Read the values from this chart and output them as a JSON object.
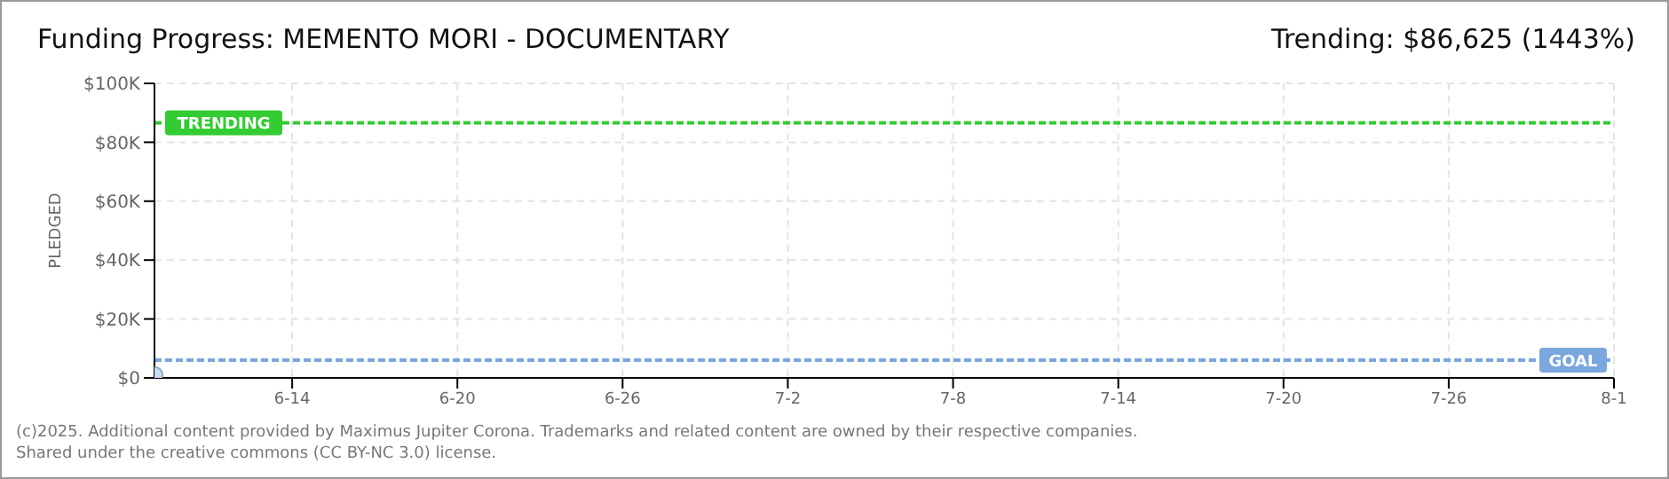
{
  "chart_data": {
    "type": "scatter",
    "title": "Funding Progress: MEMENTO MORI - DOCUMENTARY",
    "subtitle": "Trending: $86,625 (1443%)",
    "ylabel": "PLEDGED",
    "x": [
      "--06-09"
    ],
    "series": [
      {
        "color": "#c6dcf5",
        "values": [
          1000
        ]
      }
    ],
    "xlim": [
      "--06-09",
      "--08-01"
    ],
    "xticks": [
      {
        "value": "--06-14",
        "label": "6-14"
      },
      {
        "value": "--06-20",
        "label": "6-20"
      },
      {
        "value": "--06-26",
        "label": "6-26"
      },
      {
        "value": "--07-02",
        "label": "7-2"
      },
      {
        "value": "--07-08",
        "label": "7-8"
      },
      {
        "value": "--07-14",
        "label": "7-14"
      },
      {
        "value": "--07-20",
        "label": "7-20"
      },
      {
        "value": "--07-26",
        "label": "7-26"
      },
      {
        "value": "--08-01",
        "label": "8-1"
      }
    ],
    "ylim": [
      0,
      100000
    ],
    "yticks": [
      {
        "value": 0,
        "label": "$0"
      },
      {
        "value": 20000,
        "label": "$20K"
      },
      {
        "value": 40000,
        "label": "$40K"
      },
      {
        "value": 60000,
        "label": "$60K"
      },
      {
        "value": 80000,
        "label": "$80K"
      },
      {
        "value": 100000,
        "label": "$100K"
      }
    ],
    "ref_lines": [
      {
        "axis": "y",
        "value": 86625,
        "label": "TRENDING",
        "color": "#33cc33",
        "line_style": "dashed"
      },
      {
        "axis": "y",
        "value": 6000,
        "label": "GOAL",
        "color": "#7aa7dd",
        "line_style": "dashed"
      }
    ],
    "grid": true,
    "legend": false,
    "marker": "circle",
    "annotations": [
      "(c)2025. Additional content provided by Maximus Jupiter Corona. Trademarks and related content are owned by their respective companies.",
      "Shared under the creative commons (CC BY-NC 3.0) license."
    ]
  }
}
